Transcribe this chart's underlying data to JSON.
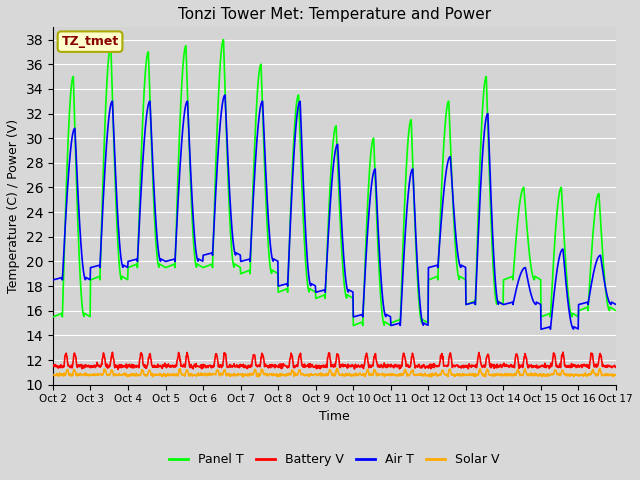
{
  "title": "Tonzi Tower Met: Temperature and Power",
  "xlabel": "Time",
  "ylabel": "Temperature (C) / Power (V)",
  "ylim": [
    10,
    39
  ],
  "yticks": [
    10,
    12,
    14,
    16,
    18,
    20,
    22,
    24,
    26,
    28,
    30,
    32,
    34,
    36,
    38
  ],
  "bg_color": "#d8d8d8",
  "plot_bg_color": "#d4d4d4",
  "grid_color": "#ffffff",
  "legend_labels": [
    "Panel T",
    "Battery V",
    "Air T",
    "Solar V"
  ],
  "legend_colors": [
    "#00ff00",
    "#ff0000",
    "#0000ff",
    "#ffaa00"
  ],
  "annotation_text": "TZ_tmet",
  "annotation_bg": "#ffffcc",
  "annotation_fg": "#880000",
  "annotation_edge": "#aaaa00",
  "line_width": 1.2,
  "n_days": 15,
  "start_day": 2,
  "panel_peaks": [
    35,
    37.5,
    37,
    37.5,
    38,
    36,
    33.5,
    31,
    30,
    31.5,
    33,
    35,
    26,
    26,
    25.5
  ],
  "panel_troughs": [
    15.5,
    18.5,
    19.5,
    19.5,
    19.5,
    19,
    17.5,
    17,
    14.8,
    15,
    18.5,
    16.5,
    18.5,
    15.5,
    16
  ],
  "air_peaks": [
    30.8,
    33,
    33,
    33,
    33.5,
    33,
    33,
    29.5,
    27.5,
    27.5,
    28.5,
    32,
    19.5,
    21,
    20.5
  ],
  "air_troughs": [
    18.5,
    19.5,
    20,
    20,
    20.5,
    20,
    18,
    17.5,
    15.5,
    14.8,
    19.5,
    16.5,
    16.5,
    14.5,
    16.5
  ],
  "battery_base": 11.5,
  "battery_spike": 1.0,
  "solar_base": 10.8,
  "solar_spike": 0.4
}
